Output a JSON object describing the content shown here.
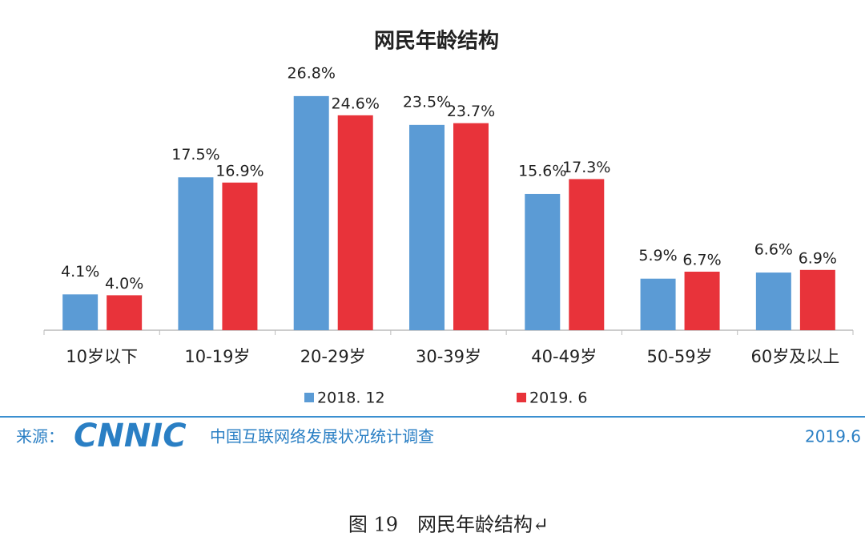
{
  "chart_data": {
    "type": "bar",
    "title": "网民年龄结构",
    "categories": [
      "10岁以下",
      "10-19岁",
      "20-29岁",
      "30-39岁",
      "40-49岁",
      "50-59岁",
      "60岁及以上"
    ],
    "series": [
      {
        "name": "2018. 12",
        "color": "#5b9bd5",
        "values": [
          4.1,
          17.5,
          26.8,
          23.5,
          15.6,
          5.9,
          6.6
        ],
        "value_labels": [
          "4.1%",
          "17.5%",
          "26.8%",
          "23.5%",
          "15.6%",
          "5.9%",
          "6.6%"
        ]
      },
      {
        "name": "2019. 6",
        "color": "#e8333a",
        "values": [
          4.0,
          16.9,
          24.6,
          23.7,
          17.3,
          6.7,
          6.9
        ],
        "value_labels": [
          "4.0%",
          "16.9%",
          "24.6%",
          "23.7%",
          "17.3%",
          "6.7%",
          "6.9%"
        ]
      }
    ],
    "ylim": [
      0,
      30
    ],
    "legend": "bottom"
  },
  "footer": {
    "source_label": "来源：",
    "logo": "CNNIC",
    "survey": "中国互联网络发展状况统计调查",
    "date": "2019.6"
  },
  "caption": "图 19　网民年龄结构↵"
}
